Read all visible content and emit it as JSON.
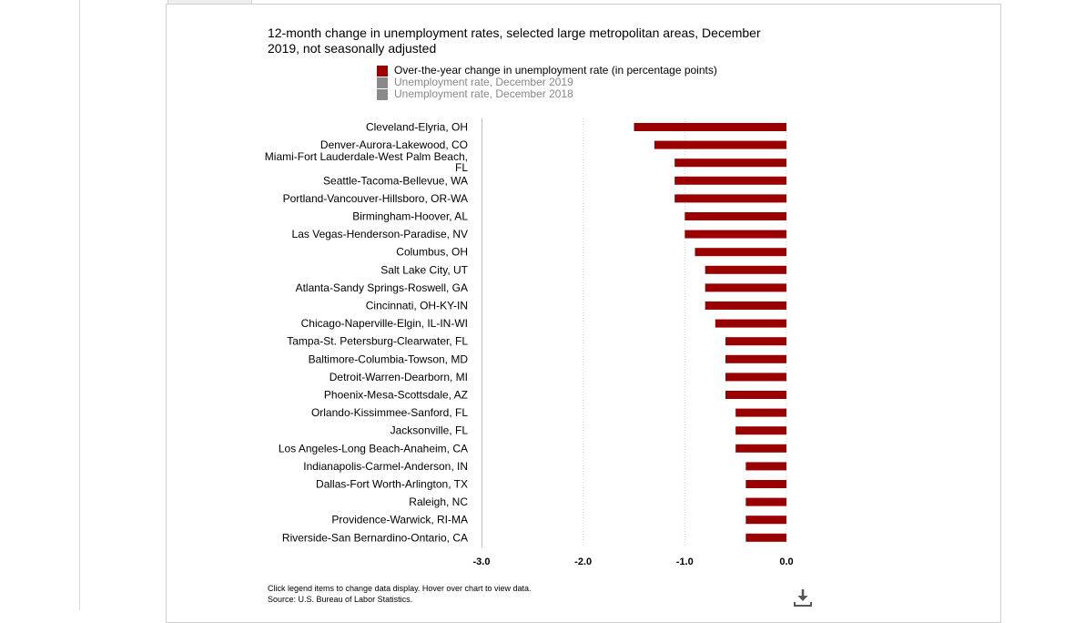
{
  "chart_data": {
    "type": "bar",
    "orientation": "horizontal",
    "title": "12-month change in unemployment rates, selected large metropolitan areas, December 2019, not seasonally adjusted",
    "legend": [
      {
        "label": "Over-the-year change in unemployment rate (in percentage points)",
        "color": "#9b0000",
        "active": true
      },
      {
        "label": "Unemployment rate, December 2019",
        "color": "#8a8a8a",
        "active": false
      },
      {
        "label": "Unemployment rate, December 2018",
        "color": "#8a8a8a",
        "active": false
      }
    ],
    "legend_position": "top-center",
    "categories": [
      [
        "Cleveland-Elyria, OH"
      ],
      [
        "Denver-Aurora-Lakewood, CO"
      ],
      [
        "Miami-Fort Lauderdale-West Palm Beach,",
        "FL"
      ],
      [
        "Seattle-Tacoma-Bellevue, WA"
      ],
      [
        "Portland-Vancouver-Hillsboro, OR-WA"
      ],
      [
        "Birmingham-Hoover, AL"
      ],
      [
        "Las Vegas-Henderson-Paradise, NV"
      ],
      [
        "Columbus, OH"
      ],
      [
        "Salt Lake City, UT"
      ],
      [
        "Atlanta-Sandy Springs-Roswell, GA"
      ],
      [
        "Cincinnati, OH-KY-IN"
      ],
      [
        "Chicago-Naperville-Elgin, IL-IN-WI"
      ],
      [
        "Tampa-St. Petersburg-Clearwater, FL"
      ],
      [
        "Baltimore-Columbia-Towson, MD"
      ],
      [
        "Detroit-Warren-Dearborn, MI"
      ],
      [
        "Phoenix-Mesa-Scottsdale, AZ"
      ],
      [
        "Orlando-Kissimmee-Sanford, FL"
      ],
      [
        "Jacksonville, FL"
      ],
      [
        "Los Angeles-Long Beach-Anaheim, CA"
      ],
      [
        "Indianapolis-Carmel-Anderson, IN"
      ],
      [
        "Dallas-Fort Worth-Arlington, TX"
      ],
      [
        "Raleigh, NC"
      ],
      [
        "Providence-Warwick, RI-MA"
      ],
      [
        "Riverside-San Bernardino-Ontario, CA"
      ]
    ],
    "series": [
      {
        "values": [
          -1.5,
          -1.3,
          -1.1,
          -1.1,
          -1.1,
          -1.0,
          -1.0,
          -0.9,
          -0.8,
          -0.8,
          -0.8,
          -0.7,
          -0.6,
          -0.6,
          -0.6,
          -0.6,
          -0.5,
          -0.5,
          -0.5,
          -0.4,
          -0.4,
          -0.4,
          -0.4,
          -0.4
        ],
        "color": "#9b0000"
      }
    ],
    "xlim": [
      -3.0,
      0.0
    ],
    "x_ticks": [
      "-3.0",
      "-2.0",
      "-1.0",
      "0.0"
    ],
    "grid": "vertical dotted"
  },
  "footnote": {
    "line1": "Click legend items to change data display. Hover over chart to view data.",
    "line2": "Source: U.S. Bureau of Labor Statistics."
  },
  "icons": {
    "download": "download-icon"
  }
}
